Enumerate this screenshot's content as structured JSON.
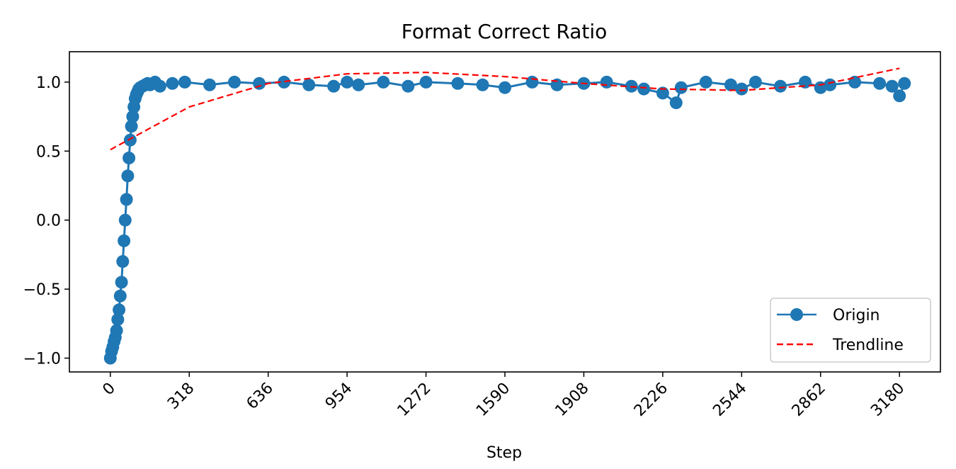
{
  "chart_data": {
    "type": "line",
    "title": "Format Correct Ratio",
    "xlabel": "Step",
    "ylabel": "",
    "xlim": [
      -165,
      3345
    ],
    "ylim": [
      -1.1,
      1.22
    ],
    "xticks": [
      0,
      318,
      636,
      954,
      1272,
      1590,
      1908,
      2226,
      2544,
      2862,
      3180
    ],
    "yticks": [
      -1.0,
      -0.5,
      0.0,
      0.5,
      1.0
    ],
    "ytick_labels": [
      "−1.0",
      "−0.5",
      "0.0",
      "0.5",
      "1.0"
    ],
    "grid": false,
    "legend": "lower-right",
    "series": [
      {
        "name": "Origin",
        "style": "line-marker",
        "color": "#1f77b4",
        "x": [
          0,
          5,
          10,
          15,
          20,
          25,
          30,
          35,
          40,
          45,
          50,
          55,
          60,
          65,
          70,
          75,
          80,
          85,
          90,
          95,
          100,
          105,
          110,
          115,
          120,
          130,
          140,
          150,
          160,
          180,
          200,
          250,
          300,
          400,
          500,
          600,
          700,
          800,
          900,
          954,
          1000,
          1100,
          1200,
          1272,
          1400,
          1500,
          1590,
          1700,
          1800,
          1908,
          2000,
          2100,
          2150,
          2226,
          2280,
          2300,
          2400,
          2500,
          2544,
          2600,
          2700,
          2800,
          2862,
          2900,
          3000,
          3100,
          3150,
          3180,
          3200
        ],
        "y": [
          -1.0,
          -0.95,
          -0.92,
          -0.88,
          -0.85,
          -0.8,
          -0.72,
          -0.65,
          -0.55,
          -0.45,
          -0.3,
          -0.15,
          0.0,
          0.15,
          0.32,
          0.45,
          0.58,
          0.68,
          0.75,
          0.82,
          0.88,
          0.91,
          0.93,
          0.95,
          0.96,
          0.97,
          0.98,
          0.99,
          0.98,
          1.0,
          0.97,
          0.99,
          1.0,
          0.98,
          1.0,
          0.99,
          1.0,
          0.98,
          0.97,
          1.0,
          0.98,
          1.0,
          0.97,
          1.0,
          0.99,
          0.98,
          0.96,
          1.0,
          0.98,
          0.99,
          1.0,
          0.97,
          0.95,
          0.92,
          0.85,
          0.96,
          1.0,
          0.98,
          0.95,
          1.0,
          0.97,
          1.0,
          0.96,
          0.98,
          1.0,
          0.99,
          0.97,
          0.9,
          0.99
        ]
      },
      {
        "name": "Trendline",
        "style": "dashed",
        "color": "#ff0000",
        "x": [
          0,
          318,
          636,
          954,
          1272,
          1590,
          1908,
          2226,
          2544,
          2862,
          3180
        ],
        "y": [
          0.51,
          0.82,
          0.99,
          1.06,
          1.07,
          1.04,
          0.99,
          0.95,
          0.94,
          0.98,
          1.1
        ]
      }
    ]
  }
}
